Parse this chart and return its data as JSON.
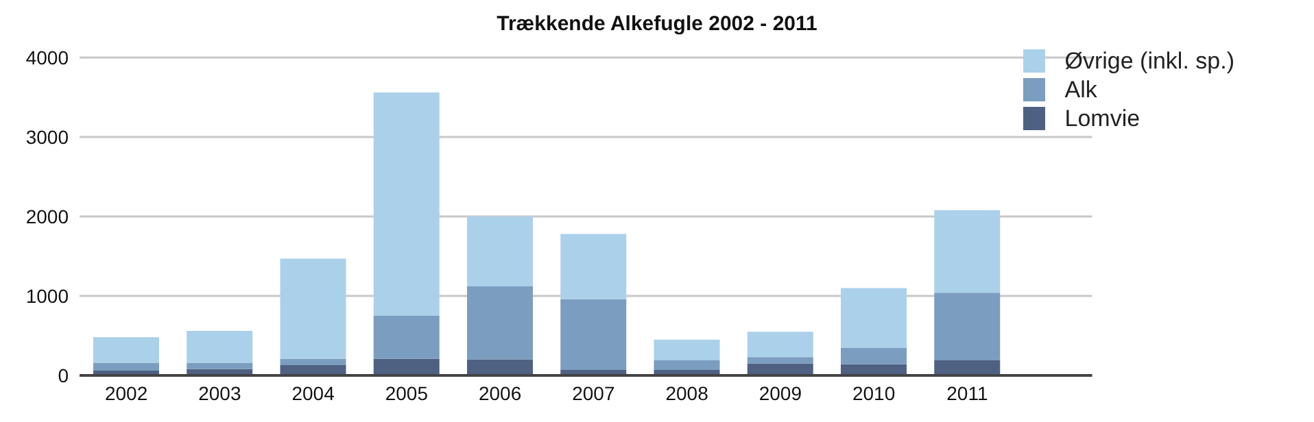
{
  "chart_data": {
    "type": "bar",
    "title": "Trækkende Alkefugle 2002 - 2011",
    "stacked": true,
    "categories": [
      "2002",
      "2003",
      "2004",
      "2005",
      "2006",
      "2007",
      "2008",
      "2009",
      "2010",
      "2011"
    ],
    "series": [
      {
        "name": "Lomvie",
        "color": "#4e6182",
        "values": [
          60,
          80,
          130,
          210,
          200,
          70,
          70,
          150,
          140,
          190
        ]
      },
      {
        "name": "Alk",
        "color": "#7b9dbf",
        "values": [
          100,
          80,
          80,
          540,
          920,
          890,
          120,
          80,
          210,
          850
        ]
      },
      {
        "name": "Øvrige (inkl. sp.)",
        "color": "#abd0ea",
        "values": [
          320,
          400,
          1260,
          2810,
          880,
          820,
          260,
          320,
          750,
          1040
        ]
      }
    ],
    "ylim": [
      0,
      4000
    ],
    "yticks": [
      0,
      1000,
      2000,
      3000,
      4000
    ],
    "grid": "y",
    "legend": "top right"
  }
}
